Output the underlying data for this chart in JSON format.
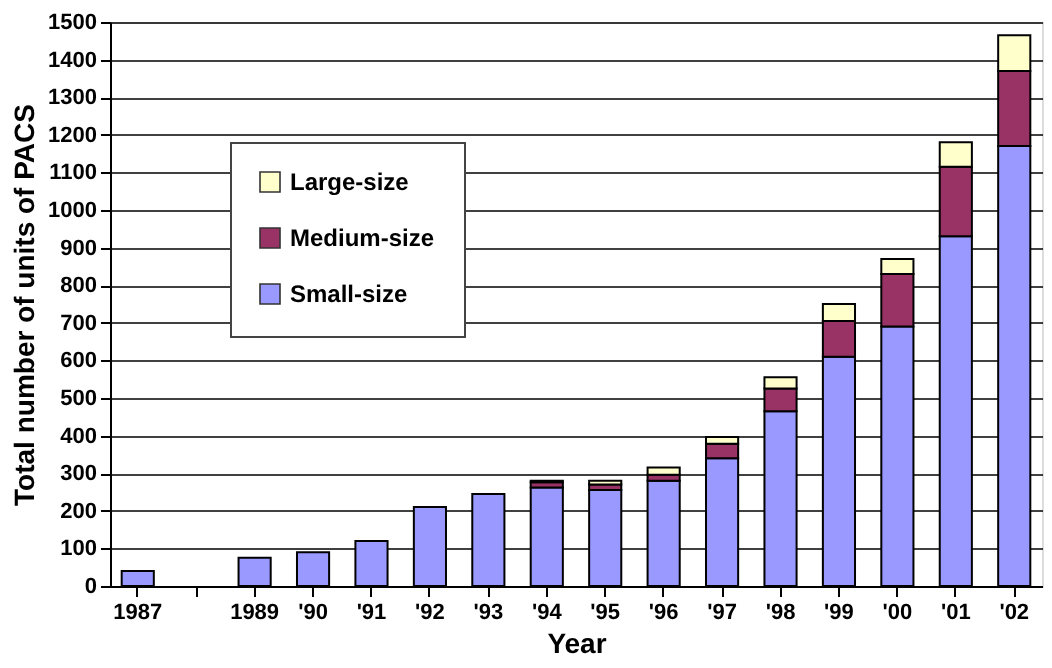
{
  "chart_data": {
    "type": "bar",
    "stacked": true,
    "xlabel": "Year",
    "ylabel": "Total number of units of PACS",
    "categories": [
      "1987",
      null,
      "1989",
      "'90",
      "'91",
      "'92",
      "'93",
      "'94",
      "'95",
      "'96",
      "'97",
      "'98",
      "'99",
      "'00",
      "'01",
      "'02"
    ],
    "series": [
      {
        "name": "Small-size",
        "color": "#9999ff",
        "values": [
          40,
          null,
          75,
          90,
          120,
          210,
          245,
          262,
          255,
          280,
          340,
          465,
          610,
          690,
          930,
          1170
        ]
      },
      {
        "name": "Medium-size",
        "color": "#993366",
        "values": [
          null,
          null,
          null,
          null,
          null,
          null,
          null,
          14,
          15,
          16,
          38,
          60,
          95,
          140,
          185,
          200
        ]
      },
      {
        "name": "Large-size",
        "color": "#ffffcc",
        "values": [
          null,
          null,
          null,
          null,
          null,
          null,
          null,
          4,
          10,
          19,
          18,
          30,
          45,
          40,
          65,
          95
        ]
      }
    ],
    "ylim": [
      0,
      1500
    ],
    "yticks": [
      0,
      100,
      200,
      300,
      400,
      500,
      600,
      700,
      800,
      900,
      1000,
      1100,
      1200,
      1300,
      1400,
      1500
    ],
    "grid": "y",
    "legend": "top left"
  }
}
